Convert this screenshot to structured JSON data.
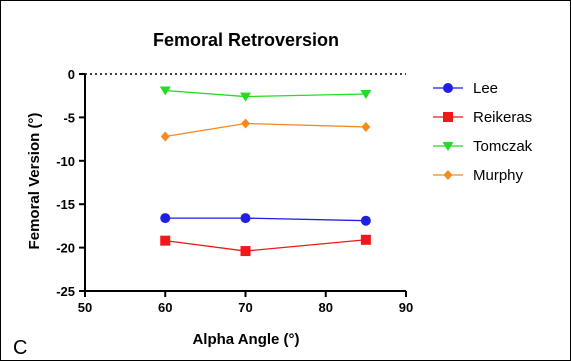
{
  "chart_data": {
    "type": "line",
    "title": "Femoral Retroversion",
    "xlabel": "Alpha Angle (°)",
    "ylabel": "Femoral Version (°)",
    "xlim": [
      50,
      90
    ],
    "ylim": [
      -25,
      0
    ],
    "xticks": [
      50,
      60,
      70,
      80,
      90
    ],
    "yticks": [
      0,
      -5,
      -10,
      -15,
      -20,
      -25
    ],
    "reference_line": {
      "y": 0,
      "style": "dotted"
    },
    "grid": false,
    "legend_position": "right",
    "panel_label": "C",
    "x": [
      60,
      70,
      85
    ],
    "series": [
      {
        "name": "Lee",
        "values": [
          -16.6,
          -16.6,
          -16.9
        ],
        "color": "#1f1fe6",
        "marker": "circle"
      },
      {
        "name": "Reikeras",
        "values": [
          -19.2,
          -20.4,
          -19.1
        ],
        "color": "#f01818",
        "marker": "square"
      },
      {
        "name": "Tomczak",
        "values": [
          -1.9,
          -2.6,
          -2.3
        ],
        "color": "#22dd22",
        "marker": "triangle-down"
      },
      {
        "name": "Murphy",
        "values": [
          -7.2,
          -5.7,
          -6.1
        ],
        "color": "#f58a1f",
        "marker": "diamond"
      }
    ]
  }
}
